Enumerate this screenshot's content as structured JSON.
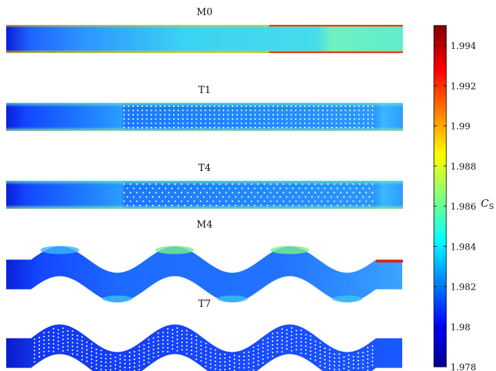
{
  "chart_data": {
    "type": "heatmap",
    "panels": [
      {
        "title": "M0",
        "shape": "straight",
        "pins": "none"
      },
      {
        "title": "T1",
        "shape": "straight",
        "pins": "inline"
      },
      {
        "title": "T4",
        "shape": "straight",
        "pins": "staggered"
      },
      {
        "title": "M4",
        "shape": "wavy",
        "pins": "none"
      },
      {
        "title": "T7",
        "shape": "wavy",
        "pins": "staggered"
      }
    ],
    "colorbar": {
      "label": "C",
      "label_sub": "S",
      "colormap": "jet",
      "range": [
        1.978,
        1.995
      ],
      "ticks": [
        "1.994",
        "1.992",
        "1.99",
        "1.988",
        "1.986",
        "1.984",
        "1.982",
        "1.98",
        "1.978"
      ],
      "tick_values": [
        1.994,
        1.992,
        1.99,
        1.988,
        1.986,
        1.984,
        1.982,
        1.98,
        1.978
      ]
    }
  }
}
